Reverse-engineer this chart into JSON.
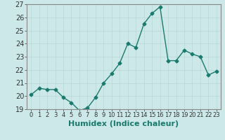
{
  "x": [
    0,
    1,
    2,
    3,
    4,
    5,
    6,
    7,
    8,
    9,
    10,
    11,
    12,
    13,
    14,
    15,
    16,
    17,
    18,
    19,
    20,
    21,
    22,
    23
  ],
  "y": [
    20.1,
    20.6,
    20.5,
    20.5,
    19.9,
    19.5,
    18.9,
    19.1,
    19.9,
    21.0,
    21.7,
    22.5,
    24.0,
    23.7,
    25.5,
    26.3,
    26.8,
    22.7,
    22.7,
    23.5,
    23.2,
    23.0,
    21.6,
    21.9
  ],
  "xlabel": "Humidex (Indice chaleur)",
  "ylim": [
    19,
    27
  ],
  "xlim_min": -0.5,
  "xlim_max": 23.5,
  "yticks": [
    19,
    20,
    21,
    22,
    23,
    24,
    25,
    26,
    27
  ],
  "xticks": [
    0,
    1,
    2,
    3,
    4,
    5,
    6,
    7,
    8,
    9,
    10,
    11,
    12,
    13,
    14,
    15,
    16,
    17,
    18,
    19,
    20,
    21,
    22,
    23
  ],
  "line_color": "#1a7a6e",
  "marker": "D",
  "marker_size": 2.5,
  "bg_color": "#cce8e8",
  "grid_color": "#b8d8d8",
  "line_width": 1.0,
  "xlabel_fontsize": 8,
  "tick_fontsize": 6,
  "ytick_fontsize": 7
}
